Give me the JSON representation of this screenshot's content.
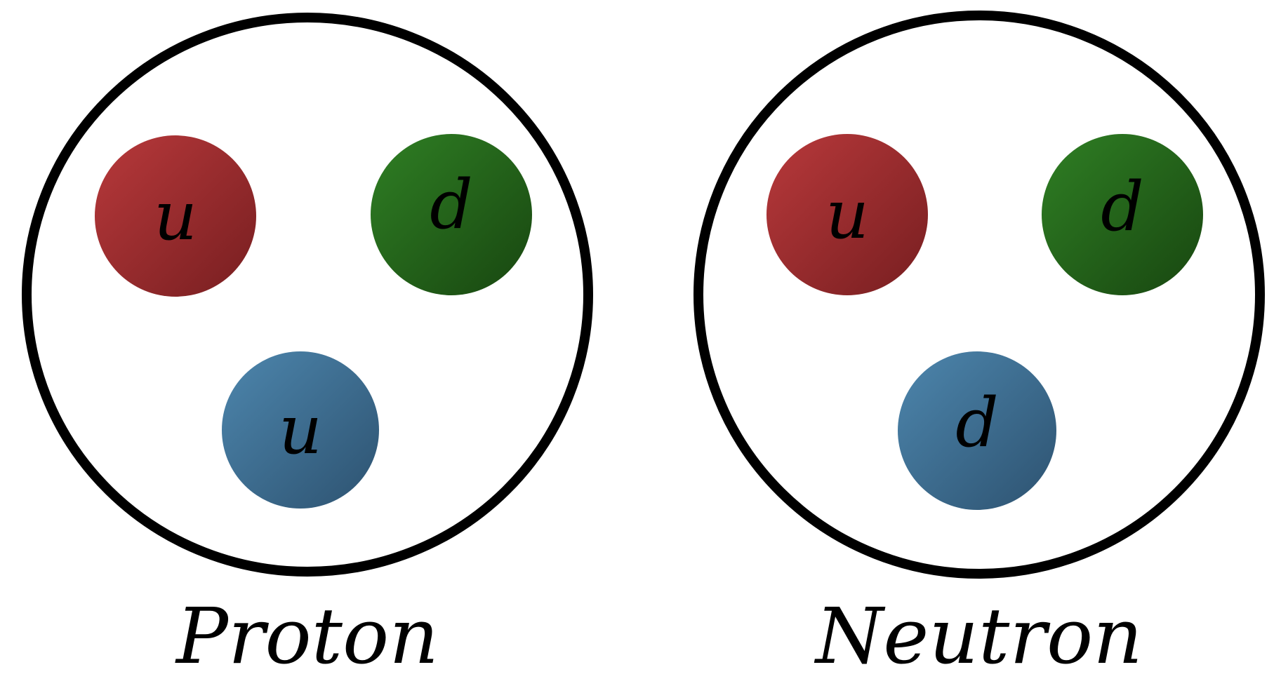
{
  "colors": {
    "outline": "#000000",
    "background": "#ffffff",
    "red_light": "#b3383a",
    "red_dark": "#7a1f21",
    "green_light": "#2f7d24",
    "green_dark": "#1a4a12",
    "blue_light": "#4b81a7",
    "blue_dark": "#2f5673"
  },
  "particles": [
    {
      "label": "Proton",
      "quarks": [
        {
          "flavor": "u",
          "color": "red"
        },
        {
          "flavor": "d",
          "color": "green"
        },
        {
          "flavor": "u",
          "color": "blue"
        }
      ]
    },
    {
      "label": "Neutron",
      "quarks": [
        {
          "flavor": "u",
          "color": "red"
        },
        {
          "flavor": "d",
          "color": "green"
        },
        {
          "flavor": "d",
          "color": "blue"
        }
      ]
    }
  ]
}
